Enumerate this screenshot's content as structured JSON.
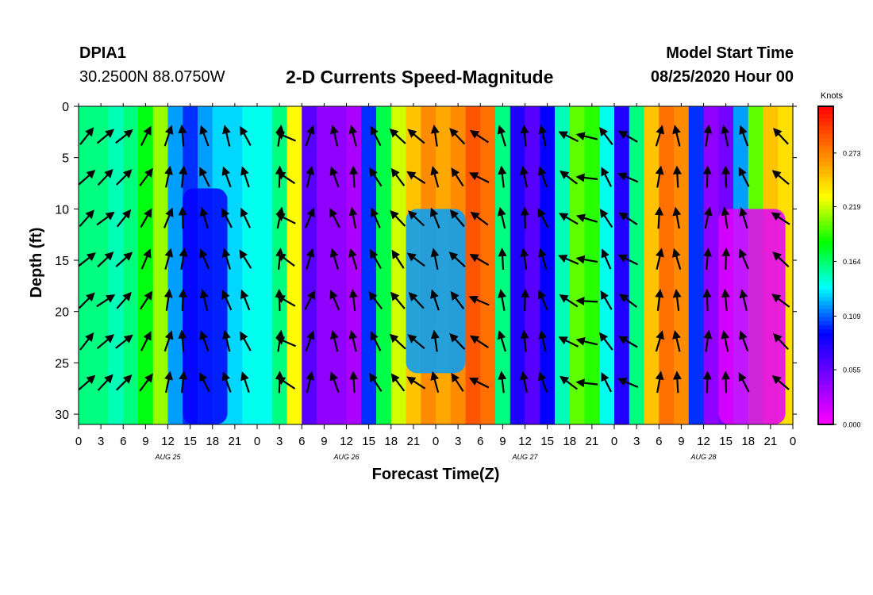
{
  "header": {
    "station": "DPIA1",
    "coordinates": "30.2500N 88.0750W",
    "title": "2-D Currents Speed-Magnitude",
    "model_start_label": "Model Start Time",
    "model_start_value": "08/25/2020 Hour 00"
  },
  "chart_data": {
    "type": "heatmap",
    "title": "2-D Currents Speed-Magnitude",
    "xlabel": "Forecast Time(Z)",
    "ylabel": "Depth (ft)",
    "x_tick_labels": [
      "0",
      "3",
      "6",
      "9",
      "12",
      "15",
      "18",
      "21",
      "0",
      "3",
      "6",
      "9",
      "12",
      "15",
      "18",
      "21",
      "0",
      "3",
      "6",
      "9",
      "12",
      "15",
      "18",
      "21",
      "0",
      "3",
      "6",
      "9",
      "12",
      "15",
      "18",
      "21",
      "0"
    ],
    "x_day_labels": [
      "AUG 25",
      "AUG 26",
      "AUG 27",
      "AUG 28"
    ],
    "xlim_hours": [
      0,
      96
    ],
    "y_tick_labels": [
      "0",
      "5",
      "10",
      "15",
      "20",
      "25",
      "30"
    ],
    "ylim_ft": [
      0,
      31
    ],
    "y_inverted": true,
    "colorbar": {
      "unit_label": "Knots",
      "tick_labels": [
        "0.273",
        "0.219",
        "0.164",
        "0.109",
        "0.055",
        "0.000"
      ],
      "range": [
        0,
        0.32
      ],
      "colors": [
        "#ff00ff",
        "#8000ff",
        "#0000ff",
        "#00ffff",
        "#00ff00",
        "#ffff00",
        "#ff8000",
        "#ff0000"
      ]
    },
    "speed_columns_knots": [
      0.16,
      0.16,
      0.15,
      0.16,
      0.18,
      0.21,
      0.12,
      0.1,
      0.12,
      0.13,
      0.13,
      0.14,
      0.14,
      0.16,
      0.23,
      0.06,
      0.04,
      0.04,
      0.03,
      0.1,
      0.17,
      0.22,
      0.25,
      0.27,
      0.26,
      0.27,
      0.29,
      0.28,
      0.16,
      0.08,
      0.06,
      0.09,
      0.15,
      0.2,
      0.19,
      0.14,
      0.08,
      0.16,
      0.25,
      0.28,
      0.27,
      0.1,
      0.04,
      0.05,
      0.12,
      0.2,
      0.25,
      0.24
    ],
    "speed_anomalies_knots": [
      {
        "hour_from": 14,
        "hour_to": 20,
        "depth_from": 8,
        "depth_to": 31,
        "value": 0.09
      },
      {
        "hour_from": 44,
        "hour_to": 52,
        "depth_from": 10,
        "depth_to": 26,
        "value": 0.12
      },
      {
        "hour_from": 86,
        "hour_to": 95,
        "depth_from": 10,
        "depth_to": 31,
        "value": 0.01
      }
    ],
    "vector_hours": [
      1,
      3.5,
      6,
      9,
      12,
      14,
      17,
      20,
      22.5,
      27,
      28,
      31,
      34.5,
      37,
      40,
      43,
      45.5,
      48,
      51,
      54,
      57,
      60,
      62.5,
      66,
      68.5,
      71,
      74,
      78,
      80.5,
      84.5,
      87,
      89.5,
      94.5
    ],
    "vector_depths_ft": [
      3,
      7,
      11,
      15,
      19,
      23,
      27
    ],
    "vector_dirs_deg": [
      -45,
      -40,
      -45,
      -60,
      -75,
      -88,
      -110,
      -110,
      -115,
      -85,
      -150,
      -70,
      -110,
      -100,
      -120,
      -130,
      -140,
      -105,
      -130,
      -150,
      -100,
      -95,
      -110,
      -150,
      -170,
      -120,
      -150,
      -80,
      -100,
      -85,
      -95,
      -110,
      -140
    ]
  }
}
